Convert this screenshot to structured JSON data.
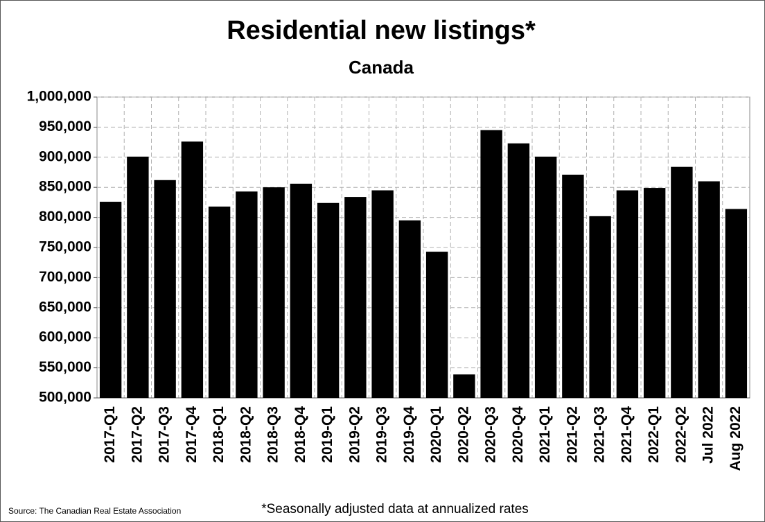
{
  "chart_data": {
    "type": "bar",
    "title": "Residential new listings*",
    "subtitle": "Canada",
    "categories": [
      "2017-Q1",
      "2017-Q2",
      "2017-Q3",
      "2017-Q4",
      "2018-Q1",
      "2018-Q2",
      "2018-Q3",
      "2018-Q4",
      "2019-Q1",
      "2019-Q2",
      "2019-Q3",
      "2019-Q4",
      "2020-Q1",
      "2020-Q2",
      "2020-Q3",
      "2020-Q4",
      "2021-Q1",
      "2021-Q2",
      "2021-Q3",
      "2021-Q4",
      "2022-Q1",
      "2022-Q2",
      "Jul 2022",
      "Aug 2022"
    ],
    "values": [
      826000,
      901000,
      862000,
      926000,
      818000,
      843000,
      850000,
      856000,
      824000,
      834000,
      845000,
      795000,
      743000,
      539000,
      945000,
      923000,
      901000,
      871000,
      802000,
      845000,
      849000,
      884000,
      860000,
      814000
    ],
    "color": "#000000",
    "ylim": [
      500000,
      1000000
    ],
    "yticks": [
      {
        "value": 500000,
        "label": "500,000"
      },
      {
        "value": 550000,
        "label": "550,000"
      },
      {
        "value": 600000,
        "label": "600,000"
      },
      {
        "value": 650000,
        "label": "650,000"
      },
      {
        "value": 700000,
        "label": "700,000"
      },
      {
        "value": 750000,
        "label": "750,000"
      },
      {
        "value": 800000,
        "label": "800,000"
      },
      {
        "value": 850000,
        "label": "850,000"
      },
      {
        "value": 900000,
        "label": "900,000"
      },
      {
        "value": 950000,
        "label": "950,000"
      },
      {
        "value": 1000000,
        "label": "1,000,000"
      }
    ],
    "grid": true,
    "source": "Source: The Canadian Real Estate Association",
    "footnote": "*Seasonally adjusted data at annualized rates"
  }
}
